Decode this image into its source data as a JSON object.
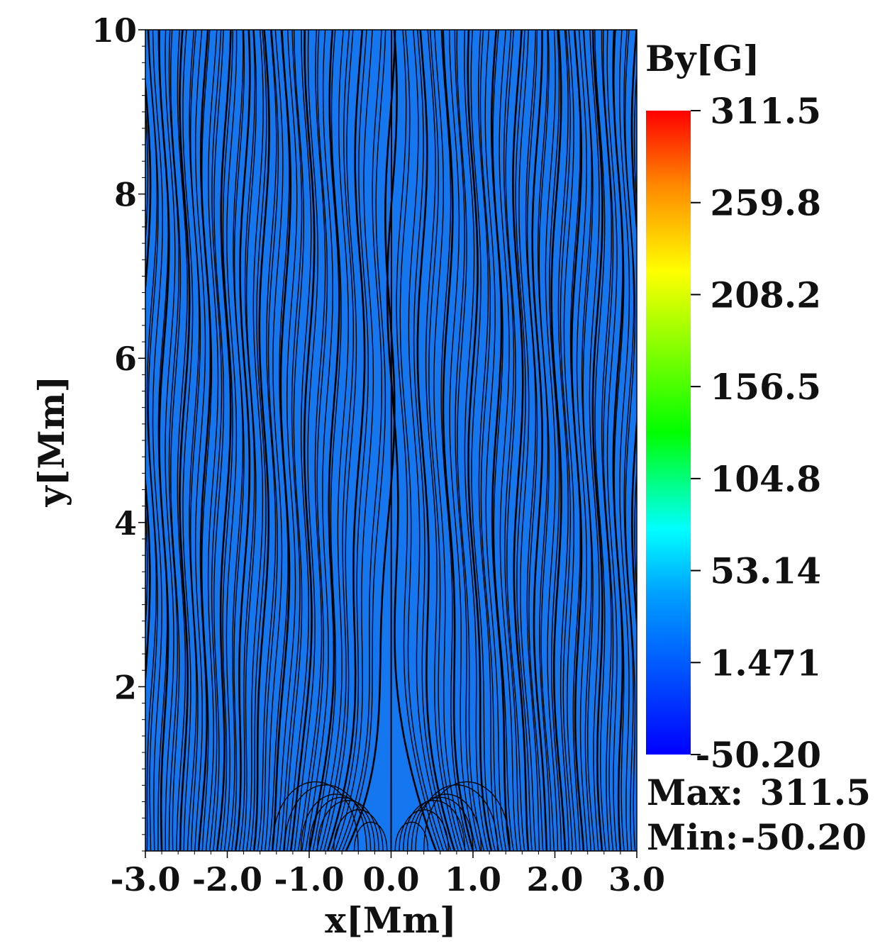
{
  "chart_data": {
    "type": "heatmap",
    "description_kind": "2D colour contour of By with magnetic field lines overlaid",
    "xlabel": "x[Mm]",
    "ylabel": "y[Mm]",
    "xlim": [
      -3.0,
      3.0
    ],
    "ylim": [
      0,
      10
    ],
    "x_ticks": [
      -3.0,
      -2.0,
      -1.0,
      0.0,
      1.0,
      2.0,
      3.0
    ],
    "x_tick_labels": [
      "-3.0",
      "-2.0",
      "-1.0",
      "0.0",
      "1.0",
      "2.0",
      "3.0"
    ],
    "y_ticks": [
      2,
      4,
      6,
      8,
      10
    ],
    "y_tick_labels": [
      "2",
      "4",
      "6",
      "8",
      "10"
    ],
    "colorbar": {
      "title": "By[G]",
      "min": -50.2,
      "max": 311.5,
      "tick_values": [
        311.5,
        259.8,
        208.2,
        156.5,
        104.8,
        53.14,
        1.471,
        -50.2
      ],
      "tick_labels": [
        "311.5",
        "259.8",
        "208.2",
        "156.5",
        "104.8",
        "53.14",
        "1.471",
        "-50.20"
      ],
      "colormap": [
        "#0000ff",
        "#00ffff",
        "#00ff00",
        "#ffff00",
        "#ff0000"
      ]
    },
    "background_color": "#1477f0",
    "field_line_color": "#000000",
    "source": {
      "x": 0.0,
      "y": 0.0,
      "value": 311.5
    },
    "stats": {
      "max_label": "Max:",
      "max_value": "311.5",
      "min_label": "Min:",
      "min_value": "-50.20"
    }
  }
}
